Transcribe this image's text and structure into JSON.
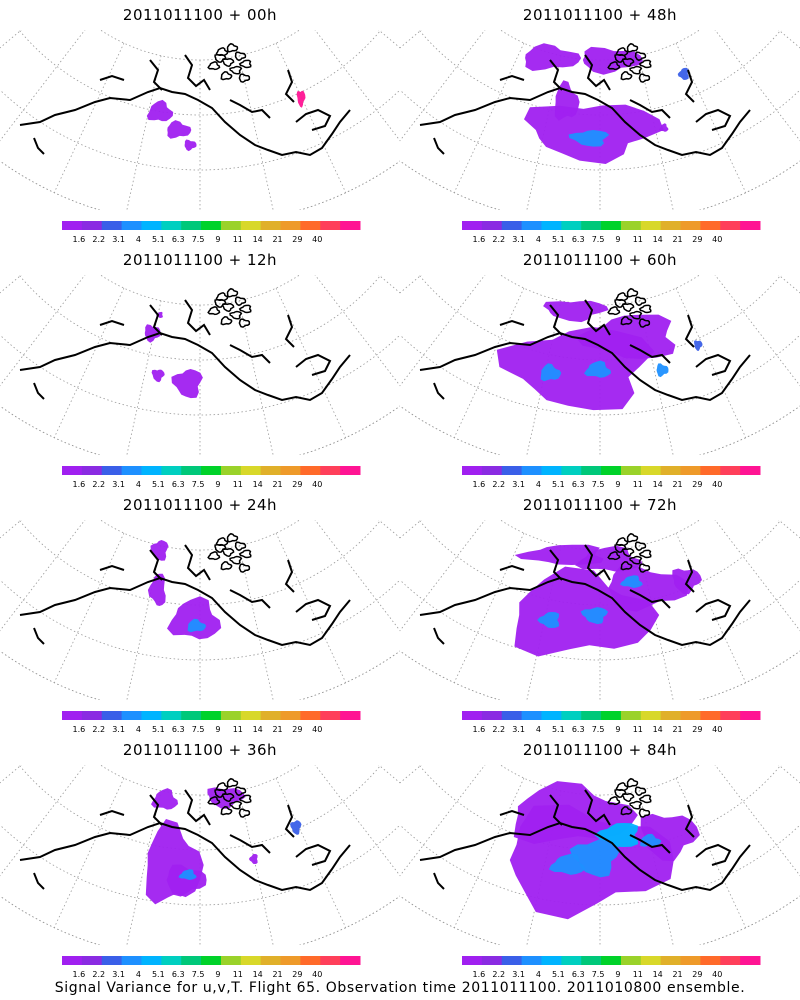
{
  "footer": "Signal Variance for u,v,T. Flight 65. Observation time 2011011100. 2011010800 ensemble.",
  "colorbar": {
    "labels": [
      "1.6",
      "2.2",
      "3.1",
      "4",
      "5.1",
      "6.3",
      "7.5",
      "9",
      "11",
      "14",
      "21",
      "29",
      "40"
    ],
    "colors": [
      "#a020f0",
      "#8a2be2",
      "#3a5fe8",
      "#1e90ff",
      "#00b4ff",
      "#00cfc0",
      "#00c87a",
      "#00d22a",
      "#9ad22a",
      "#d8d82a",
      "#e0b02a",
      "#ee9a2a",
      "#ff6a2a",
      "#ff3f5a",
      "#ff1493"
    ]
  },
  "chart_data": [
    {
      "type": "heatmap",
      "title": "2011011100 + 00h",
      "lead_hours": 0
    },
    {
      "type": "heatmap",
      "title": "2011011100 + 48h",
      "lead_hours": 48
    },
    {
      "type": "heatmap",
      "title": "2011011100 + 12h",
      "lead_hours": 12
    },
    {
      "type": "heatmap",
      "title": "2011011100 + 60h",
      "lead_hours": 60
    },
    {
      "type": "heatmap",
      "title": "2011011100 + 24h",
      "lead_hours": 24
    },
    {
      "type": "heatmap",
      "title": "2011011100 + 72h",
      "lead_hours": 72
    },
    {
      "type": "heatmap",
      "title": "2011011100 + 36h",
      "lead_hours": 36
    },
    {
      "type": "heatmap",
      "title": "2011011100 + 84h",
      "lead_hours": 84
    }
  ]
}
